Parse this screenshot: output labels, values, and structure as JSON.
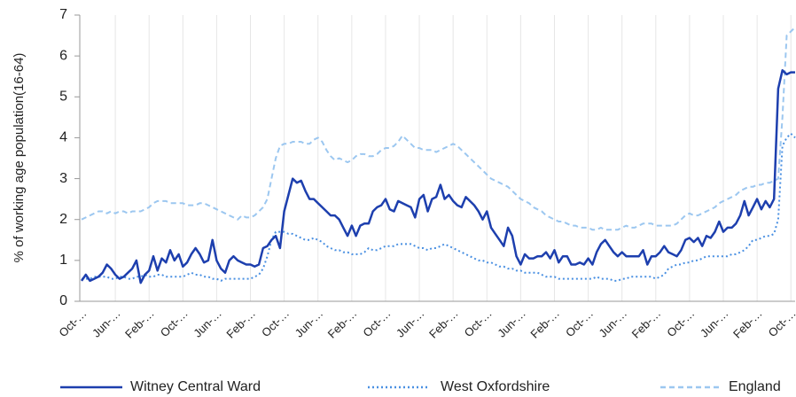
{
  "chart_data": {
    "type": "line",
    "y_label": "% of working age population(16-64)",
    "ylim": [
      0,
      7
    ],
    "yticks": [
      0,
      1,
      2,
      3,
      4,
      5,
      6,
      7
    ],
    "grid": "x",
    "legend": "bottom",
    "categories": [
      "Oct-…",
      null,
      null,
      null,
      null,
      null,
      null,
      null,
      "Jun-…",
      null,
      null,
      null,
      null,
      null,
      null,
      null,
      "Feb-…",
      null,
      null,
      null,
      null,
      null,
      null,
      null,
      "Oct-…",
      null,
      null,
      null,
      null,
      null,
      null,
      null,
      "Jun-…",
      null,
      null,
      null,
      null,
      null,
      null,
      null,
      "Feb-…",
      null,
      null,
      null,
      null,
      null,
      null,
      null,
      "Oct-…",
      null,
      null,
      null,
      null,
      null,
      null,
      null,
      "Jun-…",
      null,
      null,
      null,
      null,
      null,
      null,
      null,
      "Feb-…",
      null,
      null,
      null,
      null,
      null,
      null,
      null,
      "Oct-…",
      null,
      null,
      null,
      null,
      null,
      null,
      null,
      "Jun-…",
      null,
      null,
      null,
      null,
      null,
      null,
      null,
      "Feb-…",
      null,
      null,
      null,
      null,
      null,
      null,
      null,
      "Oct-…",
      null,
      null,
      null,
      null,
      null,
      null,
      null,
      "Jun-…",
      null,
      null,
      null,
      null,
      null,
      null,
      null,
      "Feb-…",
      null,
      null,
      null,
      null,
      null,
      null,
      null,
      "Oct-…",
      null,
      null,
      null,
      null,
      null,
      null,
      null,
      "Jun-…",
      null,
      null,
      null,
      null,
      null,
      null,
      null,
      "Feb-…",
      null,
      null,
      null,
      null,
      null,
      null,
      null,
      "Oct-…",
      null,
      null,
      null,
      null,
      null,
      null,
      null,
      "Jun-…",
      null,
      null,
      null,
      null,
      null,
      null,
      null,
      "Feb-…",
      null,
      null,
      null,
      null,
      null,
      null,
      null,
      "Oct-…",
      null
    ],
    "series": [
      {
        "name": "Witney Central Ward",
        "color": "#1d3fae",
        "style": "solid",
        "values": [
          0.5,
          0.65,
          0.5,
          0.55,
          0.6,
          0.7,
          0.9,
          0.8,
          0.65,
          0.55,
          0.6,
          0.7,
          0.8,
          1.0,
          0.45,
          0.65,
          0.75,
          1.1,
          0.75,
          1.05,
          0.95,
          1.25,
          1.0,
          1.15,
          0.85,
          0.95,
          1.15,
          1.3,
          1.15,
          0.95,
          1.0,
          1.5,
          1.0,
          0.8,
          0.7,
          1.0,
          1.1,
          1.0,
          0.95,
          0.9,
          0.9,
          0.85,
          0.9,
          1.3,
          1.35,
          1.5,
          1.6,
          1.3,
          2.2,
          2.6,
          3.0,
          2.9,
          2.95,
          2.7,
          2.5,
          2.5,
          2.4,
          2.3,
          2.2,
          2.1,
          2.1,
          2.0,
          1.8,
          1.6,
          1.85,
          1.6,
          1.85,
          1.9,
          1.9,
          2.2,
          2.3,
          2.35,
          2.5,
          2.25,
          2.2,
          2.45,
          2.4,
          2.35,
          2.3,
          2.05,
          2.5,
          2.6,
          2.2,
          2.5,
          2.55,
          2.85,
          2.5,
          2.6,
          2.45,
          2.35,
          2.3,
          2.55,
          2.45,
          2.35,
          2.2,
          2.0,
          2.2,
          1.8,
          1.65,
          1.5,
          1.35,
          1.8,
          1.6,
          1.1,
          0.9,
          1.15,
          1.05,
          1.05,
          1.1,
          1.1,
          1.2,
          1.05,
          1.25,
          0.95,
          1.1,
          1.1,
          0.9,
          0.9,
          0.95,
          0.9,
          1.05,
          0.9,
          1.2,
          1.4,
          1.5,
          1.35,
          1.2,
          1.1,
          1.2,
          1.1,
          1.1,
          1.1,
          1.1,
          1.25,
          0.9,
          1.1,
          1.1,
          1.2,
          1.35,
          1.2,
          1.15,
          1.1,
          1.25,
          1.5,
          1.55,
          1.45,
          1.55,
          1.35,
          1.6,
          1.55,
          1.7,
          1.95,
          1.7,
          1.8,
          1.8,
          1.9,
          2.1,
          2.45,
          2.1,
          2.3,
          2.5,
          2.25,
          2.45,
          2.3,
          2.5,
          5.2,
          5.65,
          5.55,
          5.6,
          5.6
        ]
      },
      {
        "name": "West Oxfordshire",
        "color": "#4a90e2",
        "style": "dotted",
        "values": [
          0.55,
          0.55,
          0.55,
          0.6,
          0.6,
          0.6,
          0.6,
          0.55,
          0.55,
          0.6,
          0.6,
          0.55,
          0.55,
          0.6,
          0.6,
          0.65,
          0.6,
          0.6,
          0.65,
          0.65,
          0.6,
          0.6,
          0.6,
          0.6,
          0.6,
          0.65,
          0.7,
          0.65,
          0.65,
          0.6,
          0.6,
          0.55,
          0.55,
          0.5,
          0.55,
          0.55,
          0.55,
          0.55,
          0.55,
          0.55,
          0.55,
          0.6,
          0.65,
          0.8,
          1.1,
          1.5,
          1.7,
          1.7,
          1.7,
          1.65,
          1.65,
          1.6,
          1.55,
          1.5,
          1.5,
          1.55,
          1.5,
          1.45,
          1.35,
          1.3,
          1.25,
          1.25,
          1.2,
          1.2,
          1.15,
          1.15,
          1.15,
          1.2,
          1.3,
          1.25,
          1.25,
          1.3,
          1.35,
          1.35,
          1.35,
          1.4,
          1.4,
          1.4,
          1.4,
          1.35,
          1.3,
          1.3,
          1.25,
          1.3,
          1.3,
          1.35,
          1.4,
          1.35,
          1.3,
          1.25,
          1.2,
          1.15,
          1.1,
          1.05,
          1.0,
          1.0,
          0.95,
          0.95,
          0.9,
          0.85,
          0.85,
          0.8,
          0.8,
          0.75,
          0.75,
          0.7,
          0.7,
          0.7,
          0.7,
          0.65,
          0.6,
          0.6,
          0.6,
          0.55,
          0.55,
          0.55,
          0.55,
          0.55,
          0.55,
          0.55,
          0.55,
          0.55,
          0.6,
          0.55,
          0.55,
          0.55,
          0.5,
          0.5,
          0.55,
          0.55,
          0.6,
          0.6,
          0.6,
          0.6,
          0.6,
          0.6,
          0.55,
          0.6,
          0.65,
          0.8,
          0.85,
          0.9,
          0.9,
          0.95,
          0.95,
          1.0,
          1.0,
          1.05,
          1.1,
          1.1,
          1.1,
          1.1,
          1.1,
          1.1,
          1.15,
          1.15,
          1.2,
          1.25,
          1.35,
          1.5,
          1.5,
          1.55,
          1.6,
          1.6,
          1.65,
          2.0,
          3.8,
          4.0,
          4.1,
          4.0
        ]
      },
      {
        "name": "England",
        "color": "#9cc7f0",
        "style": "dashed",
        "values": [
          2.0,
          2.05,
          2.1,
          2.15,
          2.2,
          2.2,
          2.15,
          2.2,
          2.15,
          2.2,
          2.2,
          2.15,
          2.2,
          2.2,
          2.2,
          2.25,
          2.3,
          2.4,
          2.45,
          2.45,
          2.45,
          2.4,
          2.4,
          2.4,
          2.4,
          2.35,
          2.35,
          2.35,
          2.4,
          2.4,
          2.35,
          2.3,
          2.25,
          2.2,
          2.15,
          2.1,
          2.05,
          2.0,
          2.1,
          2.05,
          2.05,
          2.1,
          2.2,
          2.3,
          2.5,
          3.0,
          3.5,
          3.8,
          3.85,
          3.85,
          3.9,
          3.9,
          3.9,
          3.85,
          3.85,
          3.95,
          4.0,
          3.9,
          3.7,
          3.55,
          3.45,
          3.5,
          3.45,
          3.4,
          3.45,
          3.55,
          3.6,
          3.6,
          3.55,
          3.55,
          3.6,
          3.7,
          3.75,
          3.75,
          3.8,
          3.9,
          4.05,
          3.95,
          3.85,
          3.75,
          3.75,
          3.7,
          3.7,
          3.7,
          3.65,
          3.7,
          3.75,
          3.8,
          3.85,
          3.8,
          3.7,
          3.6,
          3.5,
          3.4,
          3.3,
          3.2,
          3.1,
          3.0,
          2.95,
          2.9,
          2.85,
          2.8,
          2.7,
          2.6,
          2.5,
          2.45,
          2.4,
          2.3,
          2.25,
          2.2,
          2.1,
          2.05,
          2.0,
          1.95,
          1.95,
          1.9,
          1.85,
          1.85,
          1.8,
          1.8,
          1.8,
          1.75,
          1.75,
          1.8,
          1.75,
          1.75,
          1.75,
          1.75,
          1.8,
          1.85,
          1.8,
          1.8,
          1.85,
          1.9,
          1.9,
          1.9,
          1.85,
          1.85,
          1.85,
          1.85,
          1.85,
          1.9,
          2.0,
          2.1,
          2.15,
          2.1,
          2.1,
          2.15,
          2.2,
          2.25,
          2.3,
          2.4,
          2.45,
          2.5,
          2.55,
          2.6,
          2.7,
          2.75,
          2.8,
          2.8,
          2.85,
          2.85,
          2.9,
          2.9,
          2.95,
          3.0,
          4.5,
          6.5,
          6.6,
          6.7
        ]
      }
    ]
  }
}
